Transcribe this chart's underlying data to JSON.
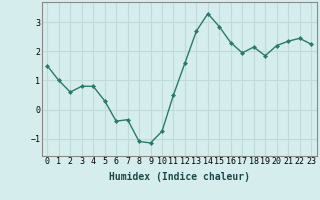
{
  "x": [
    0,
    1,
    2,
    3,
    4,
    5,
    6,
    7,
    8,
    9,
    10,
    11,
    12,
    13,
    14,
    15,
    16,
    17,
    18,
    19,
    20,
    21,
    22,
    23
  ],
  "y": [
    1.5,
    1.0,
    0.6,
    0.8,
    0.8,
    0.3,
    -0.4,
    -0.35,
    -1.1,
    -1.15,
    -0.75,
    0.5,
    1.6,
    2.7,
    3.3,
    2.85,
    2.3,
    1.95,
    2.15,
    1.85,
    2.2,
    2.35,
    2.45,
    2.25
  ],
  "line_color": "#2a7a6a",
  "marker": "D",
  "marker_size": 2.0,
  "bg_color": "#d5eeed",
  "grid_color": "#c0dada",
  "xlabel": "Humidex (Indice chaleur)",
  "xlim": [
    -0.5,
    23.5
  ],
  "ylim": [
    -1.6,
    3.7
  ],
  "yticks": [
    -1,
    0,
    1,
    2,
    3
  ],
  "xticks": [
    0,
    1,
    2,
    3,
    4,
    5,
    6,
    7,
    8,
    9,
    10,
    11,
    12,
    13,
    14,
    15,
    16,
    17,
    18,
    19,
    20,
    21,
    22,
    23
  ],
  "xtick_labels": [
    "0",
    "1",
    "2",
    "3",
    "4",
    "5",
    "6",
    "7",
    "8",
    "9",
    "10",
    "11",
    "12",
    "13",
    "14",
    "15",
    "16",
    "17",
    "18",
    "19",
    "20",
    "21",
    "22",
    "23"
  ],
  "xlabel_fontsize": 7,
  "tick_fontsize": 6,
  "line_width": 1.0,
  "spine_color": "#888888"
}
